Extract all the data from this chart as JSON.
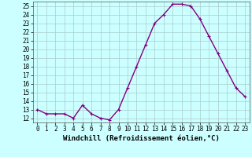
{
  "hours": [
    0,
    1,
    2,
    3,
    4,
    5,
    6,
    7,
    8,
    9,
    10,
    11,
    12,
    13,
    14,
    15,
    16,
    17,
    18,
    19,
    20,
    21,
    22,
    23
  ],
  "values": [
    13.0,
    12.5,
    12.5,
    12.5,
    12.0,
    13.5,
    12.5,
    12.0,
    11.8,
    13.0,
    15.5,
    18.0,
    20.5,
    23.0,
    24.0,
    25.2,
    25.2,
    25.0,
    23.5,
    21.5,
    19.5,
    17.5,
    15.5,
    14.5
  ],
  "line_color": "#800080",
  "marker": "P",
  "marker_color": "#800080",
  "background_color": "#ccffff",
  "grid_color": "#aacccc",
  "xlabel": "Windchill (Refroidissement éolien,°C)",
  "ylim": [
    11.5,
    25.5
  ],
  "xlim": [
    -0.5,
    23.5
  ],
  "yticks": [
    12,
    13,
    14,
    15,
    16,
    17,
    18,
    19,
    20,
    21,
    22,
    23,
    24,
    25
  ],
  "xtick_labels": [
    "0",
    "1",
    "2",
    "3",
    "4",
    "5",
    "6",
    "7",
    "8",
    "9",
    "10",
    "11",
    "12",
    "13",
    "14",
    "15",
    "16",
    "17",
    "18",
    "19",
    "20",
    "21",
    "22",
    "23"
  ],
  "tick_fontsize": 5.5,
  "label_fontsize": 6.5,
  "line_width": 1.0,
  "marker_size": 3.0
}
